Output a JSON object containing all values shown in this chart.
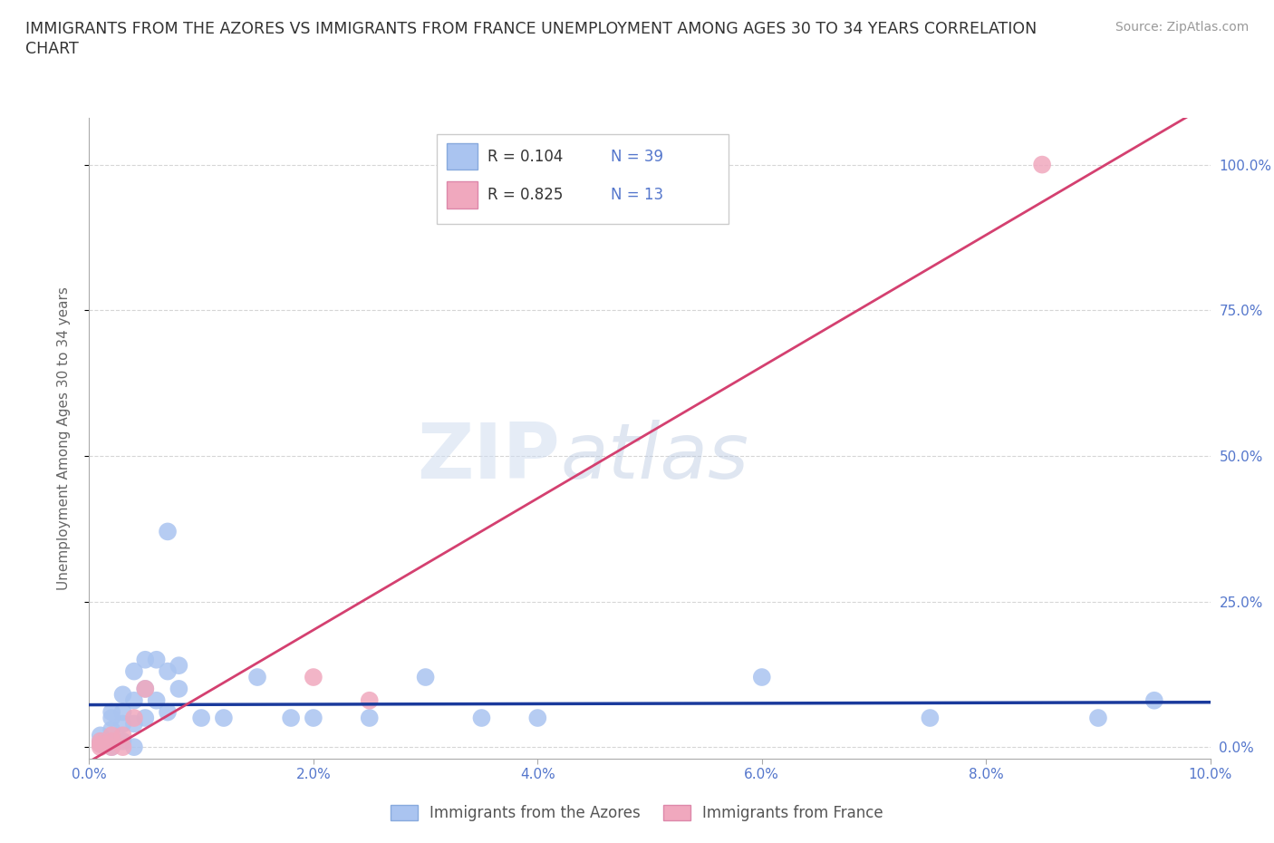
{
  "title_line1": "IMMIGRANTS FROM THE AZORES VS IMMIGRANTS FROM FRANCE UNEMPLOYMENT AMONG AGES 30 TO 34 YEARS CORRELATION",
  "title_line2": "CHART",
  "source": "Source: ZipAtlas.com",
  "ylabel": "Unemployment Among Ages 30 to 34 years",
  "xlim": [
    0.0,
    0.1
  ],
  "ylim": [
    -0.02,
    1.08
  ],
  "yticks": [
    0.0,
    0.25,
    0.5,
    0.75,
    1.0
  ],
  "ytick_labels": [
    "0.0%",
    "25.0%",
    "50.0%",
    "75.0%",
    "100.0%"
  ],
  "xticks": [
    0.0,
    0.02,
    0.04,
    0.06,
    0.08,
    0.1
  ],
  "xtick_labels": [
    "0.0%",
    "2.0%",
    "4.0%",
    "6.0%",
    "8.0%",
    "10.0%"
  ],
  "azores_color": "#aac4f0",
  "france_color": "#f0a8be",
  "trend_azores_color": "#1a3a9c",
  "trend_france_color": "#d44070",
  "legend_R_azores": "0.104",
  "legend_N_azores": "39",
  "legend_R_france": "0.825",
  "legend_N_france": "13",
  "watermark_zip": "ZIP",
  "watermark_atlas": "atlas",
  "background_color": "#ffffff",
  "tick_color": "#5577cc",
  "ylabel_color": "#666666",
  "azores_x": [
    0.001,
    0.001,
    0.001,
    0.002,
    0.002,
    0.002,
    0.002,
    0.002,
    0.003,
    0.003,
    0.003,
    0.003,
    0.004,
    0.004,
    0.004,
    0.004,
    0.005,
    0.005,
    0.005,
    0.006,
    0.006,
    0.007,
    0.007,
    0.007,
    0.008,
    0.008,
    0.01,
    0.012,
    0.015,
    0.018,
    0.02,
    0.025,
    0.03,
    0.035,
    0.04,
    0.06,
    0.075,
    0.09,
    0.095
  ],
  "azores_y": [
    0.005,
    0.01,
    0.02,
    0.0,
    0.01,
    0.03,
    0.05,
    0.06,
    0.01,
    0.04,
    0.06,
    0.09,
    0.0,
    0.04,
    0.08,
    0.13,
    0.05,
    0.1,
    0.15,
    0.08,
    0.15,
    0.06,
    0.13,
    0.37,
    0.1,
    0.14,
    0.05,
    0.05,
    0.12,
    0.05,
    0.05,
    0.05,
    0.12,
    0.05,
    0.05,
    0.12,
    0.05,
    0.05,
    0.08
  ],
  "france_x": [
    0.001,
    0.001,
    0.001,
    0.002,
    0.002,
    0.002,
    0.003,
    0.003,
    0.004,
    0.005,
    0.02,
    0.025,
    0.085
  ],
  "france_y": [
    0.0,
    0.005,
    0.01,
    0.0,
    0.01,
    0.02,
    0.0,
    0.02,
    0.05,
    0.1,
    0.12,
    0.08,
    1.0
  ]
}
